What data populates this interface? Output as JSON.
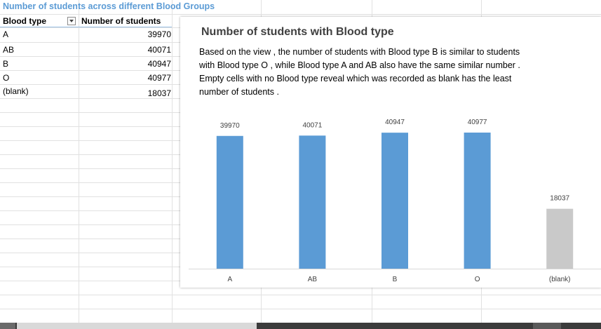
{
  "sheet_title": "Number of students across different Blood Groups",
  "table": {
    "headers": [
      "Blood type",
      "Number of students"
    ],
    "rows": [
      {
        "type": "A",
        "count": "39970"
      },
      {
        "type": "AB",
        "count": "40071"
      },
      {
        "type": "B",
        "count": "40947"
      },
      {
        "type": "O",
        "count": "40977"
      },
      {
        "type": "(blank)",
        "count": "18037"
      }
    ]
  },
  "chart_data": {
    "type": "bar",
    "title": "Number of students with Blood type",
    "description": "Based on the view , the number of students with Blood type B is similar to students with Blood type O , while Blood type A and AB also have the same similar number . Empty cells with no Blood type reveal which was recorded as blank has the least number of students .",
    "categories": [
      "A",
      "AB",
      "B",
      "O",
      "(blank)"
    ],
    "values": [
      39970,
      40071,
      40947,
      40977,
      18037
    ],
    "data_labels": [
      "39970",
      "40071",
      "40947",
      "40977",
      "18037"
    ],
    "colors": [
      "#5b9bd5",
      "#5b9bd5",
      "#5b9bd5",
      "#5b9bd5",
      "#c9c9c9"
    ],
    "ylim": [
      0,
      40977
    ],
    "xlabel": "",
    "ylabel": "",
    "grid": false,
    "legend": "none"
  }
}
